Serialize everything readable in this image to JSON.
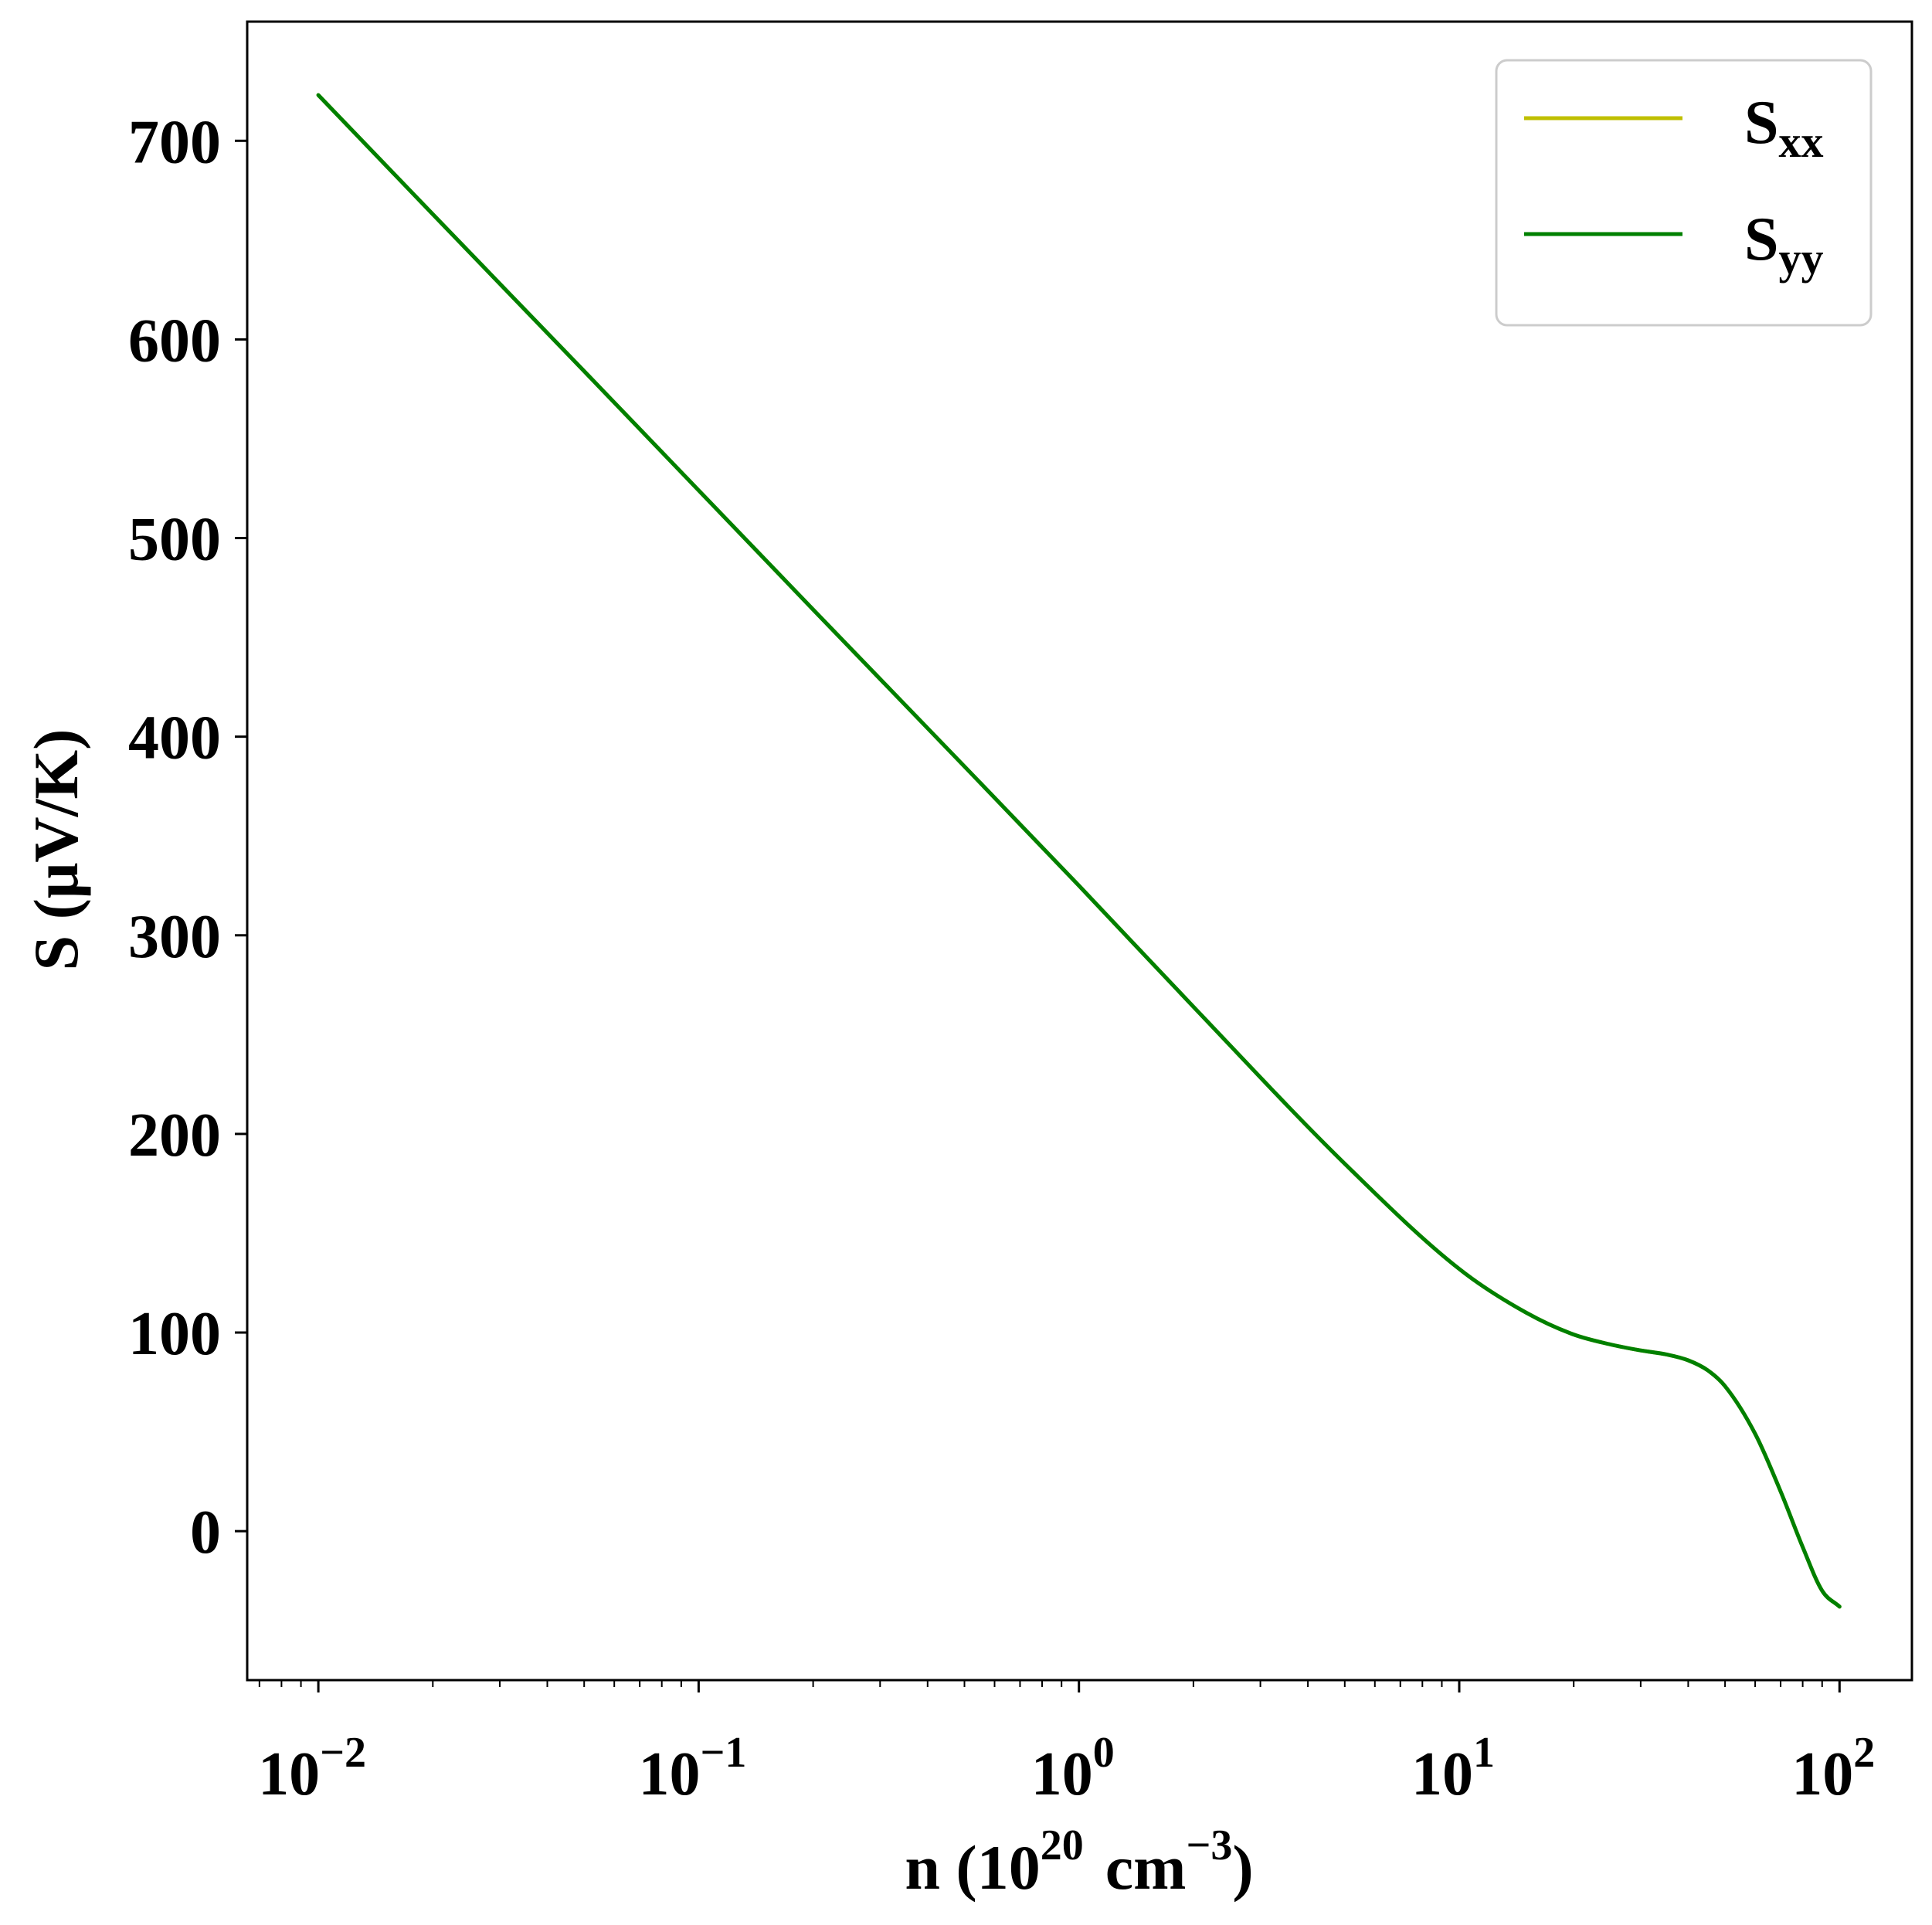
{
  "chart_data": {
    "type": "line",
    "xscale": "log",
    "xlim": [
      0.0065,
      155
    ],
    "ylim": [
      -75,
      760
    ],
    "grid": false,
    "legend_position": "top-right",
    "xlabel": {
      "main": "n (10",
      "exp": "20",
      "unit": "cm",
      "unit_exp": "−3",
      "close": ")"
    },
    "ylabel": "S (μV/K)",
    "x_ticks": [
      {
        "value": 0.01,
        "base": "10",
        "exp": "−2"
      },
      {
        "value": 0.1,
        "base": "10",
        "exp": "−1"
      },
      {
        "value": 1,
        "base": "10",
        "exp": "0"
      },
      {
        "value": 10,
        "base": "10",
        "exp": "1"
      },
      {
        "value": 100,
        "base": "10",
        "exp": "2"
      }
    ],
    "y_ticks": [
      {
        "value": 0,
        "label": "0"
      },
      {
        "value": 100,
        "label": "100"
      },
      {
        "value": 200,
        "label": "200"
      },
      {
        "value": 300,
        "label": "300"
      },
      {
        "value": 400,
        "label": "400"
      },
      {
        "value": 500,
        "label": "500"
      },
      {
        "value": 600,
        "label": "600"
      },
      {
        "value": 700,
        "label": "700"
      }
    ],
    "series": [
      {
        "name": "S",
        "sub": "xx",
        "color": "#bfbf00",
        "x": [
          0.01,
          0.02,
          0.05,
          0.1,
          0.2,
          0.5,
          1,
          2,
          5,
          10,
          15,
          20,
          25,
          30,
          35,
          40,
          45,
          50,
          60,
          70,
          80,
          90,
          100
        ],
        "y": [
          723,
          663,
          584,
          524,
          464,
          385,
          325,
          264,
          185,
          132,
          110,
          99,
          94,
          91,
          89,
          86,
          81,
          73,
          49,
          20,
          -8,
          -30,
          -38
        ]
      },
      {
        "name": "S",
        "sub": "yy",
        "color": "#008000",
        "x": [
          0.01,
          0.02,
          0.05,
          0.1,
          0.2,
          0.5,
          1,
          2,
          5,
          10,
          15,
          20,
          25,
          30,
          35,
          40,
          45,
          50,
          60,
          70,
          80,
          90,
          100
        ],
        "y": [
          723,
          663,
          584,
          524,
          464,
          385,
          325,
          264,
          185,
          132,
          110,
          99,
          94,
          91,
          89,
          86,
          81,
          73,
          49,
          20,
          -8,
          -30,
          -38
        ]
      }
    ]
  }
}
